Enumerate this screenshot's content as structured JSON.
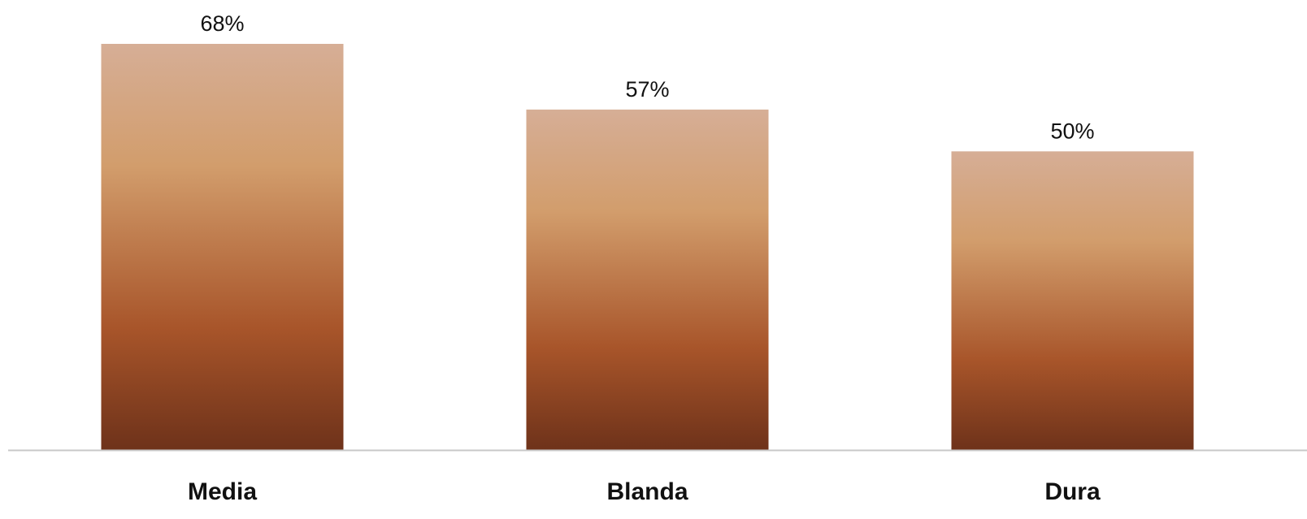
{
  "chart_data": {
    "type": "bar",
    "categories": [
      "Media",
      "Blanda",
      "Dura"
    ],
    "values": [
      68,
      57,
      50
    ],
    "value_labels": [
      "68%",
      "57%",
      "50%"
    ],
    "title": "",
    "xlabel": "",
    "ylabel": "",
    "ylim": [
      0,
      68
    ],
    "grid": false,
    "legend": "none",
    "bar_gradient": [
      "#D6AE96",
      "#D29D6C",
      "#A8552A",
      "#6E321A"
    ],
    "axis_color": "#C8C8C8"
  }
}
